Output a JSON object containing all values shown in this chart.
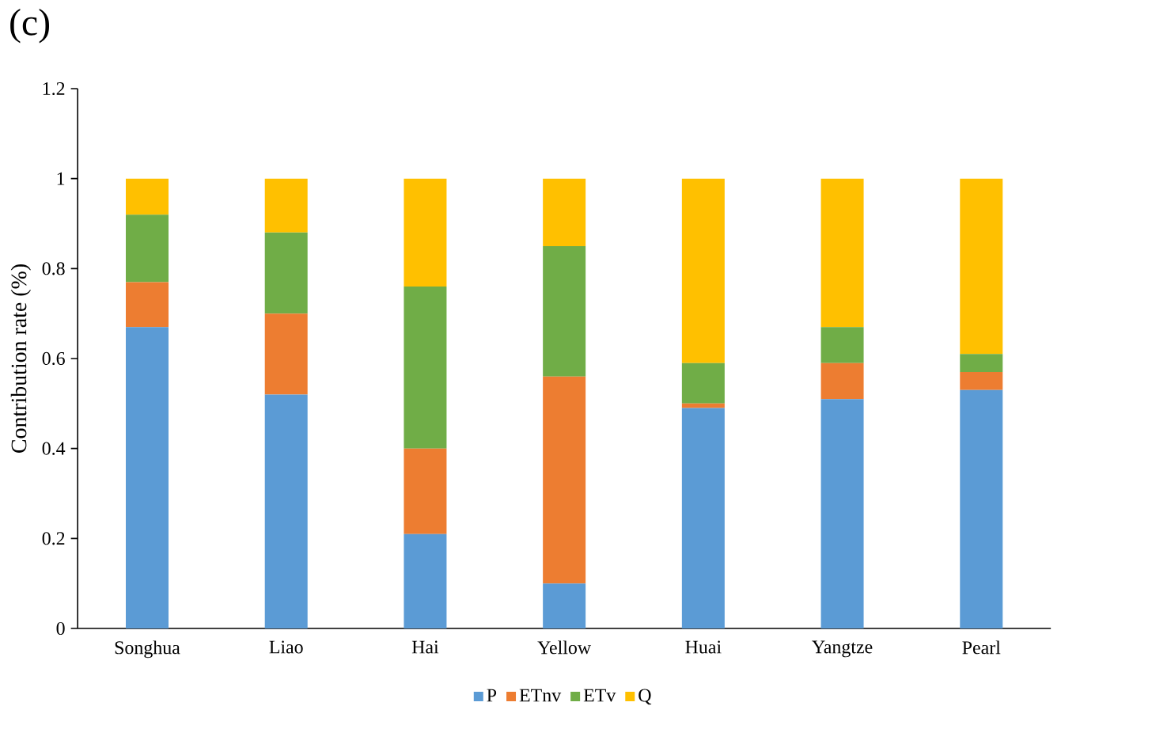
{
  "chart_data": {
    "type": "bar",
    "stacked": true,
    "ylabel": "Contribution rate (%)",
    "annotations": [
      "(c)"
    ],
    "categories": [
      "Songhua",
      "Liao",
      "Hai",
      "Yellow",
      "Huai",
      "Yangtze",
      "Pearl"
    ],
    "series": [
      {
        "name": "P",
        "color": "#5b9bd5",
        "values": [
          0.67,
          0.52,
          0.21,
          0.1,
          0.49,
          0.51,
          0.53
        ]
      },
      {
        "name": "ETnv",
        "color": "#ed7d31",
        "values": [
          0.1,
          0.18,
          0.19,
          0.46,
          0.01,
          0.08,
          0.04
        ]
      },
      {
        "name": "ETv",
        "color": "#70ad47",
        "values": [
          0.15,
          0.18,
          0.36,
          0.29,
          0.09,
          0.08,
          0.04
        ]
      },
      {
        "name": "Q",
        "color": "#ffc000",
        "values": [
          0.08,
          0.12,
          0.24,
          0.15,
          0.41,
          0.33,
          0.39
        ]
      }
    ],
    "ylim": [
      0,
      1.2
    ],
    "yticks": [
      0,
      0.2,
      0.4,
      0.6,
      0.8,
      1,
      1.2
    ],
    "grid": false,
    "legend": "bottom"
  }
}
